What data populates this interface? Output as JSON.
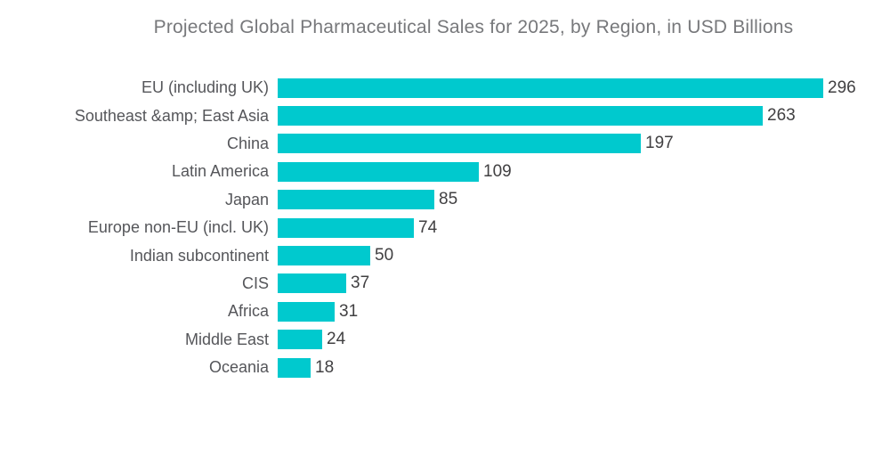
{
  "colors": {
    "background": "#FFFFFF",
    "bar": "#00C9CE",
    "title_text": "#77787B",
    "label_text": "#55565A",
    "value_text": "#414042"
  },
  "chart_data": {
    "type": "bar",
    "orientation": "horizontal",
    "title": "Projected Global Pharmaceutical Sales for 2025, by Region, in USD Billions",
    "categories": [
      "EU (including UK)",
      "Southeast &amp; East Asia",
      "China",
      "Latin America",
      "Japan",
      "Europe non-EU (incl. UK)",
      "Indian subcontinent",
      "CIS",
      "Africa",
      "Middle East",
      "Oceania"
    ],
    "values": [
      296,
      263,
      197,
      109,
      85,
      74,
      50,
      37,
      31,
      24,
      18
    ],
    "xlabel": "",
    "ylabel": "",
    "xlim": [
      0,
      296
    ],
    "value_labels": "right-of-bar",
    "grid": false,
    "legend": false,
    "axis_lines": false
  }
}
